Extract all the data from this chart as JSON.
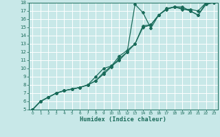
{
  "xlabel": "Humidex (Indice chaleur)",
  "bg_color": "#c8e8e8",
  "grid_color": "#ffffff",
  "line_color": "#1a6b5a",
  "xlim": [
    -0.5,
    23.5
  ],
  "ylim": [
    5,
    18
  ],
  "xticks": [
    0,
    1,
    2,
    3,
    4,
    5,
    6,
    7,
    8,
    9,
    10,
    11,
    12,
    13,
    14,
    15,
    16,
    17,
    18,
    19,
    20,
    21,
    22,
    23
  ],
  "yticks": [
    5,
    6,
    7,
    8,
    9,
    10,
    11,
    12,
    13,
    14,
    15,
    16,
    17,
    18
  ],
  "line1_x": [
    0,
    1,
    2,
    3,
    4,
    5,
    6,
    7,
    8,
    9,
    10,
    11,
    12,
    13,
    14,
    15,
    16,
    17,
    18,
    19,
    20,
    21,
    22,
    23
  ],
  "line1_y": [
    5.0,
    6.0,
    6.5,
    7.0,
    7.3,
    7.5,
    7.7,
    8.0,
    8.5,
    9.5,
    10.3,
    11.0,
    12.0,
    13.0,
    15.2,
    15.3,
    16.5,
    17.2,
    17.5,
    17.2,
    17.2,
    17.0,
    18.0,
    18.2
  ],
  "line2_x": [
    0,
    1,
    2,
    3,
    4,
    5,
    6,
    7,
    8,
    9,
    10,
    11,
    12,
    13,
    14,
    15,
    16,
    17,
    18,
    19,
    20,
    21,
    22,
    23
  ],
  "line2_y": [
    5.0,
    6.0,
    6.5,
    7.0,
    7.3,
    7.5,
    7.7,
    8.0,
    8.5,
    9.3,
    10.2,
    11.2,
    12.0,
    17.8,
    16.8,
    14.9,
    16.5,
    17.3,
    17.5,
    17.3,
    17.0,
    16.5,
    18.0,
    18.2
  ],
  "line3_x": [
    0,
    1,
    2,
    3,
    4,
    5,
    6,
    7,
    8,
    9,
    10,
    11,
    12,
    13,
    14,
    15,
    16,
    17,
    18,
    19,
    20,
    21,
    22,
    23
  ],
  "line3_y": [
    5.0,
    6.0,
    6.5,
    7.0,
    7.3,
    7.5,
    7.7,
    8.0,
    9.0,
    10.0,
    10.3,
    11.5,
    12.2,
    13.0,
    15.0,
    15.3,
    16.5,
    17.2,
    17.5,
    17.5,
    17.0,
    16.5,
    17.8,
    18.0
  ]
}
